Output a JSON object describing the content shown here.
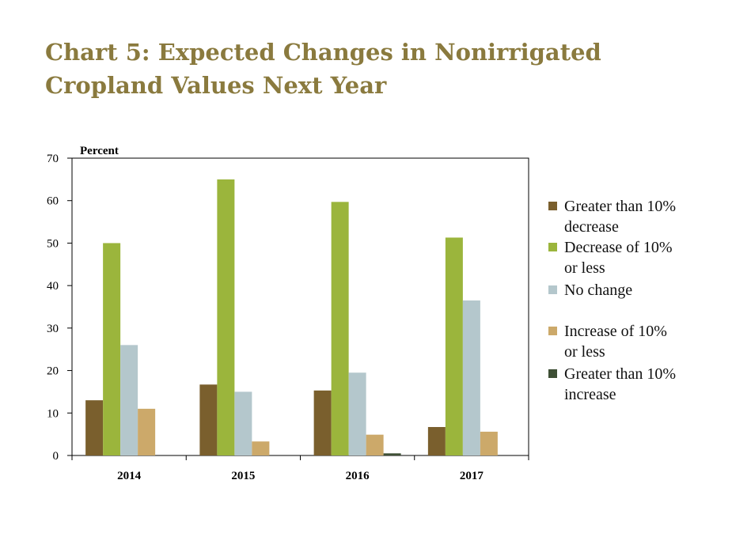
{
  "chart_data": {
    "type": "bar",
    "title_lines": [
      "Chart 5: Expected Changes in Nonirrigated",
      "Cropland Values Next Year"
    ],
    "ylabel": "Percent",
    "xlabel": "",
    "ylim": [
      0,
      70
    ],
    "yticks": [
      0,
      10,
      20,
      30,
      40,
      50,
      60,
      70
    ],
    "categories": [
      "2014",
      "2015",
      "2016",
      "2017"
    ],
    "series": [
      {
        "name": "Greater than 10% decrease",
        "label_lines": [
          "Greater than 10%",
          "decrease"
        ],
        "color": "#7a5f2d",
        "values": [
          13,
          16.7,
          15.3,
          6.7
        ]
      },
      {
        "name": "Decrease of 10% or less",
        "label_lines": [
          "Decrease of 10%",
          "or less"
        ],
        "color": "#9bb53c",
        "values": [
          50,
          65,
          59.7,
          51.3
        ]
      },
      {
        "name": "No change",
        "label_lines": [
          "No change"
        ],
        "color": "#b4c7cc",
        "values": [
          26,
          15,
          19.5,
          36.5
        ]
      },
      {
        "name": "Increase of 10% or less",
        "label_lines": [
          "Increase of 10%",
          "or less"
        ],
        "color": "#cca96a",
        "values": [
          11,
          3.3,
          4.9,
          5.6
        ]
      },
      {
        "name": "Greater than 10% increase",
        "label_lines": [
          "Greater than 10%",
          "increase"
        ],
        "color": "#3e4f35",
        "values": [
          0,
          0,
          0.5,
          0
        ]
      }
    ],
    "grid": false,
    "legend_position": "right"
  }
}
